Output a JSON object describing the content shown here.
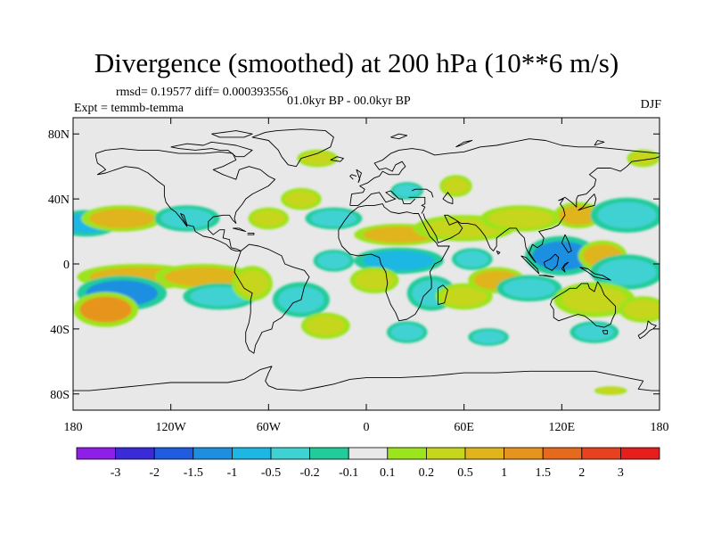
{
  "chart_data": {
    "type": "heatmap",
    "title": "Divergence (smoothed) at 200 hPa (10**6 m/s)",
    "stats_text": "rmsd= 0.19577 diff= 0.000393556",
    "experiment_label": "Expt = temmb-temma",
    "period_label": "01.0kyr BP - 00.0kyr BP",
    "season_label": "DJF",
    "x_axis": {
      "range": [
        -180,
        180
      ],
      "ticks": [
        -180,
        -120,
        -60,
        0,
        60,
        120,
        180
      ],
      "tick_labels": [
        "180",
        "120W",
        "60W",
        "0",
        "60E",
        "120E",
        "180"
      ]
    },
    "y_axis": {
      "range": [
        -90,
        90
      ],
      "ticks": [
        80,
        40,
        0,
        -40,
        -80
      ],
      "tick_labels": [
        "80N",
        "40N",
        "0",
        "40S",
        "80S"
      ]
    },
    "colorbar": {
      "levels": [
        "-3",
        "-2",
        "-1.5",
        "-1",
        "-0.5",
        "-0.2",
        "-0.1",
        "0.1",
        "0.2",
        "0.5",
        "1",
        "1.5",
        "2",
        "3"
      ],
      "colors": [
        "#8f1ee6",
        "#3a2ad8",
        "#1f5ce0",
        "#1e8fe0",
        "#1eb7e3",
        "#3fd2d2",
        "#22cc9a",
        "#e8e8e8",
        "#9be41e",
        "#c6d61a",
        "#e0b41a",
        "#e6941f",
        "#e66a1e",
        "#e6421f",
        "#e61e1e"
      ]
    },
    "features": [
      {
        "lon": -172,
        "lat": 25,
        "rx": 16,
        "ry": 6,
        "value": -0.7
      },
      {
        "lon": -150,
        "lat": 28,
        "rx": 20,
        "ry": 6,
        "value": 0.8
      },
      {
        "lon": -110,
        "lat": 28,
        "rx": 16,
        "ry": 6,
        "value": -0.5
      },
      {
        "lon": -60,
        "lat": 28,
        "rx": 10,
        "ry": 5,
        "value": 0.3
      },
      {
        "lon": -20,
        "lat": 28,
        "rx": 14,
        "ry": 5,
        "value": -0.3
      },
      {
        "lon": -40,
        "lat": 40,
        "rx": 10,
        "ry": 5,
        "value": 0.25
      },
      {
        "lon": 20,
        "lat": 18,
        "rx": 22,
        "ry": 5,
        "value": 0.5
      },
      {
        "lon": 60,
        "lat": 22,
        "rx": 25,
        "ry": 6,
        "value": 0.35
      },
      {
        "lon": 95,
        "lat": 28,
        "rx": 20,
        "ry": 6,
        "value": 0.35
      },
      {
        "lon": 130,
        "lat": 30,
        "rx": 12,
        "ry": 6,
        "value": 0.6
      },
      {
        "lon": 160,
        "lat": 30,
        "rx": 18,
        "ry": 8,
        "value": -0.4
      },
      {
        "lon": 55,
        "lat": 48,
        "rx": 8,
        "ry": 5,
        "value": 0.3
      },
      {
        "lon": 25,
        "lat": 45,
        "rx": 8,
        "ry": 4,
        "value": -0.3
      },
      {
        "lon": -30,
        "lat": 65,
        "rx": 10,
        "ry": 4,
        "value": 0.2
      },
      {
        "lon": 170,
        "lat": 65,
        "rx": 8,
        "ry": 4,
        "value": 0.2
      },
      {
        "lon": -20,
        "lat": 2,
        "rx": 10,
        "ry": 5,
        "value": -0.4
      },
      {
        "lon": 20,
        "lat": 2,
        "rx": 22,
        "ry": 6,
        "value": -0.6
      },
      {
        "lon": 65,
        "lat": 3,
        "rx": 10,
        "ry": 5,
        "value": -0.25
      },
      {
        "lon": 120,
        "lat": 5,
        "rx": 18,
        "ry": 9,
        "value": -1.2
      },
      {
        "lon": 145,
        "lat": 5,
        "rx": 12,
        "ry": 7,
        "value": 0.6
      },
      {
        "lon": 160,
        "lat": -5,
        "rx": 18,
        "ry": 8,
        "value": -0.5
      },
      {
        "lon": -140,
        "lat": -8,
        "rx": 30,
        "ry": 6,
        "value": 0.5
      },
      {
        "lon": -150,
        "lat": -18,
        "rx": 22,
        "ry": 8,
        "value": -1.2
      },
      {
        "lon": -160,
        "lat": -28,
        "rx": 16,
        "ry": 8,
        "value": 1.0
      },
      {
        "lon": -100,
        "lat": -8,
        "rx": 24,
        "ry": 6,
        "value": 0.5
      },
      {
        "lon": -90,
        "lat": -20,
        "rx": 18,
        "ry": 6,
        "value": -0.4
      },
      {
        "lon": -70,
        "lat": -12,
        "rx": 10,
        "ry": 8,
        "value": 0.4
      },
      {
        "lon": -40,
        "lat": -22,
        "rx": 14,
        "ry": 8,
        "value": -0.5
      },
      {
        "lon": -25,
        "lat": -38,
        "rx": 12,
        "ry": 6,
        "value": 0.3
      },
      {
        "lon": 5,
        "lat": -10,
        "rx": 12,
        "ry": 6,
        "value": 0.4
      },
      {
        "lon": 40,
        "lat": -18,
        "rx": 12,
        "ry": 8,
        "value": -0.4
      },
      {
        "lon": 60,
        "lat": -20,
        "rx": 14,
        "ry": 6,
        "value": 0.3
      },
      {
        "lon": 80,
        "lat": -10,
        "rx": 14,
        "ry": 6,
        "value": 0.6
      },
      {
        "lon": 100,
        "lat": -15,
        "rx": 16,
        "ry": 6,
        "value": -0.4
      },
      {
        "lon": 140,
        "lat": -22,
        "rx": 20,
        "ry": 8,
        "value": 0.4
      },
      {
        "lon": 170,
        "lat": -28,
        "rx": 12,
        "ry": 6,
        "value": 0.3
      },
      {
        "lon": 25,
        "lat": -42,
        "rx": 10,
        "ry": 5,
        "value": -0.3
      },
      {
        "lon": 75,
        "lat": -45,
        "rx": 10,
        "ry": 4,
        "value": -0.25
      },
      {
        "lon": 140,
        "lat": -42,
        "rx": 12,
        "ry": 5,
        "value": -0.3
      },
      {
        "lon": 150,
        "lat": -78,
        "rx": 8,
        "ry": 2,
        "value": 0.25
      }
    ]
  }
}
